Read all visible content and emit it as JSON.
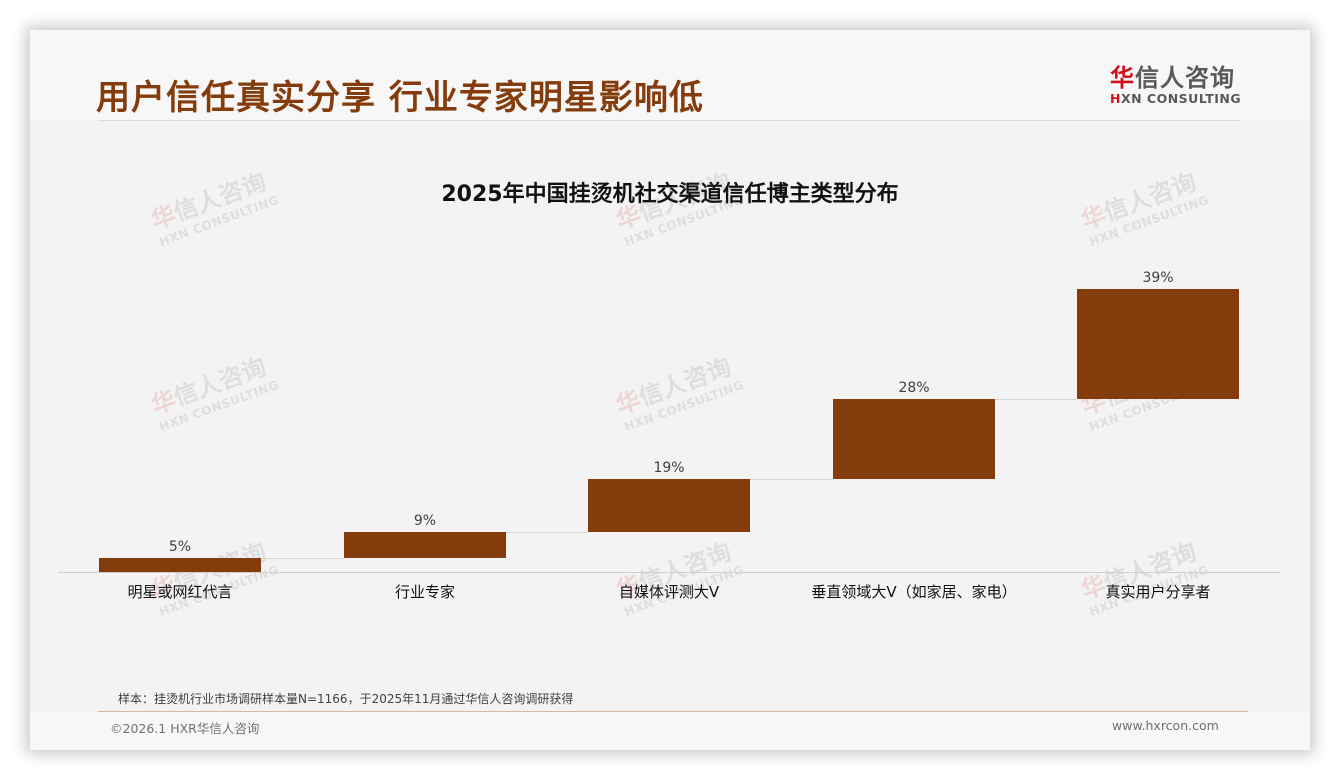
{
  "header": {
    "title": "用户信任真实分享 行业专家明星影响低",
    "logo_cn_first": "华",
    "logo_cn_rest": "信人咨询",
    "logo_en_first": "H",
    "logo_en_rest": "XN CONSULTING"
  },
  "watermark": {
    "cn_first": "华",
    "cn_rest": "信人咨询",
    "en": "HXN CONSULTING"
  },
  "colors": {
    "title": "#843c0c",
    "bar": "#843c0c",
    "logo_red": "#d0101b"
  },
  "chart_data": {
    "type": "bar",
    "subtype": "waterfall",
    "title": "2025年中国挂烫机社交渠道信任博主类型分布",
    "categories": [
      "明星或网红代言",
      "行业专家",
      "自媒体评测大V",
      "垂直领域大V（如家居、家电）",
      "真实用户分享者"
    ],
    "values": [
      5,
      9,
      19,
      28,
      39
    ],
    "labels": [
      "5%",
      "9%",
      "19%",
      "28%",
      "39%"
    ],
    "cumulative_base": [
      0,
      5,
      14,
      33,
      61
    ],
    "xlabel": "",
    "ylabel": "",
    "ylim": [
      0,
      100
    ],
    "grid": false,
    "legend": "none"
  },
  "footer": {
    "note": "样本：挂烫机行业市场调研样本量N=1166，于2025年11月通过华信人咨询调研获得",
    "copyright": "©2026.1 HXR华信人咨询",
    "website": "www.hxrcon.com"
  }
}
